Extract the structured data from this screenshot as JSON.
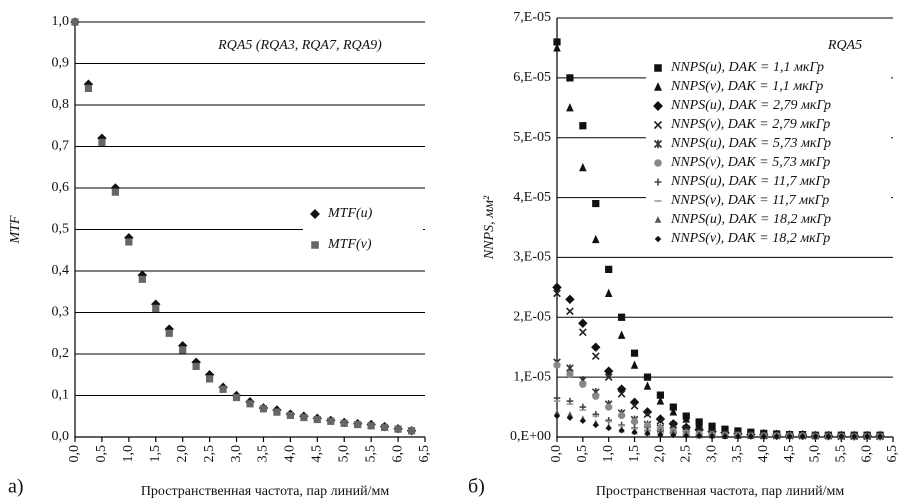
{
  "chart_data": [
    {
      "type": "scatter",
      "panel_label": "а)",
      "annotation": "RQA5 (RQA3, RQA7, RQA9)",
      "x_label": "Пространственная частота, пар линий/мм",
      "y_label": "MTF",
      "xlim": [
        0,
        6.5
      ],
      "ylim": [
        0,
        1
      ],
      "xticks": [
        {
          "value": 0,
          "label": "0,0"
        },
        {
          "value": 0.5,
          "label": "0,5"
        },
        {
          "value": 1,
          "label": "1,0"
        },
        {
          "value": 1.5,
          "label": "1,5"
        },
        {
          "value": 2,
          "label": "2,0"
        },
        {
          "value": 2.5,
          "label": "2,5"
        },
        {
          "value": 3,
          "label": "3,0"
        },
        {
          "value": 3.5,
          "label": "3,5"
        },
        {
          "value": 4,
          "label": "4,0"
        },
        {
          "value": 4.5,
          "label": "4,5"
        },
        {
          "value": 5,
          "label": "5,0"
        },
        {
          "value": 5.5,
          "label": "5,5"
        },
        {
          "value": 6,
          "label": "6,0"
        },
        {
          "value": 6.5,
          "label": "6,5"
        }
      ],
      "yticks": [
        {
          "value": 0,
          "label": "0,0"
        },
        {
          "value": 0.1,
          "label": "0,1"
        },
        {
          "value": 0.2,
          "label": "0,2"
        },
        {
          "value": 0.3,
          "label": "0,3"
        },
        {
          "value": 0.4,
          "label": "0,4"
        },
        {
          "value": 0.5,
          "label": "0,5"
        },
        {
          "value": 0.6,
          "label": "0,6"
        },
        {
          "value": 0.7,
          "label": "0,7"
        },
        {
          "value": 0.8,
          "label": "0,8"
        },
        {
          "value": 0.9,
          "label": "0,9"
        },
        {
          "value": 1,
          "label": "1,0"
        }
      ],
      "grid": true,
      "legend": "center-right",
      "x": [
        0,
        0.25,
        0.5,
        0.75,
        1,
        1.25,
        1.5,
        1.75,
        2,
        2.25,
        2.5,
        2.75,
        3,
        3.25,
        3.5,
        3.75,
        4,
        4.25,
        4.5,
        4.75,
        5,
        5.25,
        5.5,
        5.75,
        6,
        6.25
      ],
      "series": [
        {
          "name": "MTF(u)",
          "color": "#111111",
          "marker": "diamond",
          "values": [
            1.0,
            0.85,
            0.72,
            0.6,
            0.48,
            0.39,
            0.32,
            0.26,
            0.22,
            0.18,
            0.15,
            0.12,
            0.1,
            0.085,
            0.07,
            0.065,
            0.055,
            0.05,
            0.045,
            0.04,
            0.035,
            0.032,
            0.03,
            0.025,
            0.02,
            0.015
          ]
        },
        {
          "name": "MTF(v)",
          "color": "#666666",
          "marker": "square",
          "values": [
            1.0,
            0.84,
            0.71,
            0.59,
            0.47,
            0.38,
            0.31,
            0.25,
            0.21,
            0.17,
            0.14,
            0.115,
            0.095,
            0.08,
            0.068,
            0.06,
            0.052,
            0.047,
            0.042,
            0.038,
            0.033,
            0.03,
            0.027,
            0.023,
            0.019,
            0.015
          ]
        }
      ]
    },
    {
      "type": "scatter",
      "panel_label": "б)",
      "annotation": "RQA5",
      "x_label": "Пространственная частота, пар линий/мм",
      "y_label": "NNPS, мм²",
      "xlim": [
        0,
        6.5
      ],
      "ylim": [
        0,
        7e-05
      ],
      "xticks": [
        {
          "value": 0,
          "label": "0,0"
        },
        {
          "value": 0.5,
          "label": "0,5"
        },
        {
          "value": 1,
          "label": "1,0"
        },
        {
          "value": 1.5,
          "label": "1,5"
        },
        {
          "value": 2,
          "label": "2,0"
        },
        {
          "value": 2.5,
          "label": "2,5"
        },
        {
          "value": 3,
          "label": "3,0"
        },
        {
          "value": 3.5,
          "label": "3,5"
        },
        {
          "value": 4,
          "label": "4,0"
        },
        {
          "value": 4.5,
          "label": "4,5"
        },
        {
          "value": 5,
          "label": "5,0"
        },
        {
          "value": 5.5,
          "label": "5,5"
        },
        {
          "value": 6,
          "label": "6,0"
        },
        {
          "value": 6.5,
          "label": "6,5"
        }
      ],
      "yticks": [
        {
          "value": 0,
          "label": "0,E+00"
        },
        {
          "value": 1e-05,
          "label": "1,E-05"
        },
        {
          "value": 2e-05,
          "label": "2,E-05"
        },
        {
          "value": 3e-05,
          "label": "3,E-05"
        },
        {
          "value": 4e-05,
          "label": "4,E-05"
        },
        {
          "value": 5e-05,
          "label": "5,E-05"
        },
        {
          "value": 6e-05,
          "label": "6,E-05"
        },
        {
          "value": 7e-05,
          "label": "7,E-05"
        }
      ],
      "grid": true,
      "legend": "upper-right",
      "x": [
        0,
        0.25,
        0.5,
        0.75,
        1,
        1.25,
        1.5,
        1.75,
        2,
        2.25,
        2.5,
        2.75,
        3,
        3.25,
        3.5,
        3.75,
        4,
        4.25,
        4.5,
        4.75,
        5,
        5.25,
        5.5,
        5.75,
        6,
        6.25
      ],
      "series": [
        {
          "name": "NNPS(u), DAK = 1,1 мкГр",
          "color": "#111111",
          "marker": "square",
          "values": [
            6.6e-05,
            6e-05,
            5.2e-05,
            3.9e-05,
            2.8e-05,
            2e-05,
            1.4e-05,
            1e-05,
            7e-06,
            5e-06,
            3.5e-06,
            2.5e-06,
            1.8e-06,
            1.3e-06,
            1e-06,
            8e-07,
            6e-07,
            5e-07,
            4e-07,
            4e-07,
            3e-07,
            3e-07,
            3e-07,
            3e-07,
            3e-07,
            3e-07
          ]
        },
        {
          "name": "NNPS(v), DAK = 1,1 мкГр",
          "color": "#111111",
          "marker": "triangle",
          "values": [
            6.5e-05,
            5.5e-05,
            4.5e-05,
            3.3e-05,
            2.4e-05,
            1.7e-05,
            1.2e-05,
            8.5e-06,
            6e-06,
            4.2e-06,
            3e-06,
            2.2e-06,
            1.6e-06,
            1.2e-06,
            9e-07,
            7e-07,
            6e-07,
            5e-07,
            4e-07,
            4e-07,
            3e-07,
            3e-07,
            3e-07,
            3e-07,
            3e-07,
            3e-07
          ]
        },
        {
          "name": "NNPS(u), DAK = 2,79 мкГр",
          "color": "#111111",
          "marker": "diamond",
          "values": [
            2.5e-05,
            2.3e-05,
            1.9e-05,
            1.5e-05,
            1.1e-05,
            8e-06,
            5.8e-06,
            4.2e-06,
            3e-06,
            2.2e-06,
            1.6e-06,
            1.2e-06,
            9e-07,
            7e-07,
            5e-07,
            4e-07,
            4e-07,
            3e-07,
            3e-07,
            3e-07,
            2e-07,
            2e-07,
            2e-07,
            2e-07,
            2e-07,
            2e-07
          ]
        },
        {
          "name": "NNPS(v), DAK = 2,79 мкГр",
          "color": "#222222",
          "marker": "x",
          "values": [
            2.4e-05,
            2.1e-05,
            1.75e-05,
            1.35e-05,
            1e-05,
            7.2e-06,
            5.2e-06,
            3.8e-06,
            2.7e-06,
            2e-06,
            1.4e-06,
            1e-06,
            8e-07,
            6e-07,
            5e-07,
            4e-07,
            3e-07,
            3e-07,
            3e-07,
            2e-07,
            2e-07,
            2e-07,
            2e-07,
            2e-07,
            2e-07,
            2e-07
          ]
        },
        {
          "name": "NNPS(u), DAK = 5,73 мкГр",
          "color": "#333333",
          "marker": "star",
          "values": [
            1.25e-05,
            1.15e-05,
            9.5e-06,
            7.5e-06,
            5.5e-06,
            4e-06,
            2.9e-06,
            2.1e-06,
            1.5e-06,
            1.1e-06,
            8e-07,
            6e-07,
            5e-07,
            4e-07,
            3e-07,
            3e-07,
            2e-07,
            2e-07,
            2e-07,
            2e-07,
            2e-07,
            2e-07,
            1e-07,
            1e-07,
            1e-07,
            1e-07
          ]
        },
        {
          "name": "NNPS(v), DAK = 5,73 мкГр",
          "color": "#888888",
          "marker": "circle",
          "values": [
            1.2e-05,
            1.05e-05,
            8.8e-06,
            6.8e-06,
            5e-06,
            3.6e-06,
            2.6e-06,
            1.9e-06,
            1.4e-06,
            1e-06,
            7e-07,
            5e-07,
            4e-07,
            3e-07,
            3e-07,
            2e-07,
            2e-07,
            2e-07,
            2e-07,
            2e-07,
            1e-07,
            1e-07,
            1e-07,
            1e-07,
            1e-07,
            1e-07
          ]
        },
        {
          "name": "NNPS(u), DAK = 11,7 мкГр",
          "color": "#444444",
          "marker": "plus",
          "values": [
            6.5e-06,
            6e-06,
            5e-06,
            3.8e-06,
            2.8e-06,
            2e-06,
            1.5e-06,
            1.1e-06,
            8e-07,
            6e-07,
            4e-07,
            3e-07,
            3e-07,
            2e-07,
            2e-07,
            2e-07,
            1e-07,
            1e-07,
            1e-07,
            1e-07,
            1e-07,
            1e-07,
            1e-07,
            1e-07,
            1e-07,
            1e-07
          ]
        },
        {
          "name": "NNPS(v), DAK = 11,7 мкГр",
          "color": "#999999",
          "marker": "dash",
          "values": [
            6e-06,
            5.5e-06,
            4.5e-06,
            3.5e-06,
            2.6e-06,
            1.9e-06,
            1.4e-06,
            1e-06,
            7e-07,
            5e-07,
            4e-07,
            3e-07,
            2e-07,
            2e-07,
            2e-07,
            1e-07,
            1e-07,
            1e-07,
            1e-07,
            1e-07,
            1e-07,
            1e-07,
            1e-07,
            1e-07,
            1e-07,
            1e-07
          ]
        },
        {
          "name": "NNPS(u), DAK = 18,2 мкГр",
          "color": "#555555",
          "marker": "triangle-small",
          "values": [
            4e-06,
            3.7e-06,
            3e-06,
            2.3e-06,
            1.7e-06,
            1.2e-06,
            9e-07,
            7e-07,
            5e-07,
            4e-07,
            3e-07,
            2e-07,
            2e-07,
            1e-07,
            1e-07,
            1e-07,
            1e-07,
            1e-07,
            1e-07,
            1e-07,
            1e-07,
            1e-07,
            1e-07,
            1e-07,
            1e-07,
            1e-07
          ]
        },
        {
          "name": "NNPS(v), DAK = 18,2 мкГр",
          "color": "#111111",
          "marker": "diamond-small",
          "values": [
            3.5e-06,
            3.2e-06,
            2.7e-06,
            2e-06,
            1.5e-06,
            1.1e-06,
            8e-07,
            6e-07,
            4e-07,
            3e-07,
            2e-07,
            2e-07,
            1e-07,
            1e-07,
            1e-07,
            1e-07,
            1e-07,
            1e-07,
            1e-07,
            1e-07,
            1e-07,
            1e-07,
            1e-07,
            1e-07,
            1e-07,
            1e-07
          ]
        }
      ]
    }
  ]
}
